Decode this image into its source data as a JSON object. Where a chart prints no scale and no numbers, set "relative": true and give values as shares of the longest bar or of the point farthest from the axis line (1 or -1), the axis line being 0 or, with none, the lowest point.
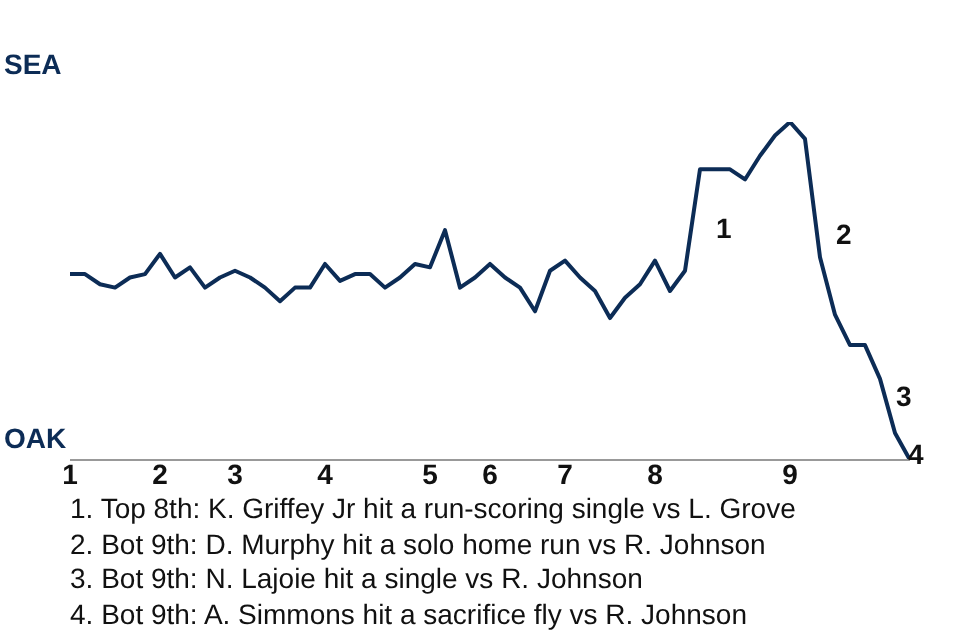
{
  "chart_data": {
    "type": "line",
    "relative": true,
    "categories": [
      "1",
      null,
      null,
      null,
      null,
      null,
      "2",
      null,
      null,
      null,
      null,
      "3",
      null,
      null,
      null,
      null,
      null,
      "4",
      null,
      null,
      null,
      null,
      null,
      null,
      "5",
      null,
      null,
      null,
      "6",
      null,
      null,
      null,
      null,
      "7",
      null,
      null,
      null,
      null,
      null,
      "8",
      null,
      null,
      null,
      null,
      null,
      null,
      null,
      null,
      "9",
      null,
      null,
      null,
      null,
      null,
      null,
      null,
      null
    ],
    "series": [
      {
        "color": "#0c2c56",
        "values": [
          0.55,
          0.55,
          0.52,
          0.51,
          0.54,
          0.55,
          0.61,
          0.54,
          0.57,
          0.51,
          0.54,
          0.56,
          0.54,
          0.51,
          0.47,
          0.51,
          0.51,
          0.58,
          0.53,
          0.55,
          0.55,
          0.51,
          0.54,
          0.58,
          0.57,
          0.68,
          0.51,
          0.54,
          0.58,
          0.54,
          0.51,
          0.44,
          0.56,
          0.59,
          0.54,
          0.5,
          0.42,
          0.48,
          0.52,
          0.59,
          0.5,
          0.56,
          0.86,
          0.86,
          0.86,
          0.83,
          0.9,
          0.96,
          1,
          0.95,
          0.6,
          0.43,
          0.34,
          0.34,
          0.24,
          0.08,
          0
        ]
      }
    ],
    "marker": "none",
    "line_style": "solid",
    "annotations": [
      "SEA",
      "OAK",
      "1",
      "2",
      "3",
      "4",
      "1. Top 8th: K. Griffey Jr hit a run-scoring single vs L. Grove",
      "2. Bot 9th: D. Murphy hit a solo home run vs R. Johnson",
      "3. Bot 9th: N. Lajoie hit a single vs R. Johnson",
      "4. Bot 9th: A. Simmons hit a sacrifice fly vs R. Johnson"
    ]
  }
}
